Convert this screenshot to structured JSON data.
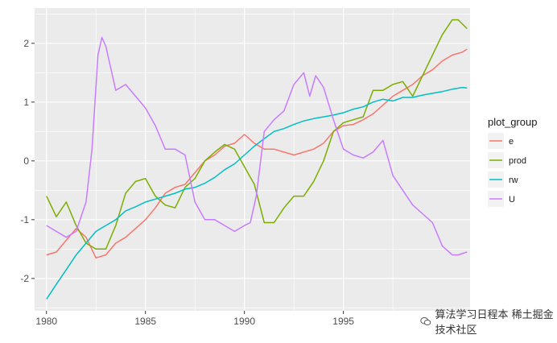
{
  "chart_data": {
    "type": "line",
    "title": "",
    "xlabel": "",
    "ylabel": "",
    "xlim": [
      1979.4,
      2001.4
    ],
    "ylim": [
      -2.55,
      2.6
    ],
    "x_ticks": [
      1980,
      1985,
      1990,
      1995
    ],
    "y_ticks": [
      -2,
      -1,
      0,
      1,
      2
    ],
    "grid": true,
    "panel_background": "#ebebeb",
    "legend": {
      "title": "plot_group",
      "position": "right"
    },
    "series": [
      {
        "name": "e",
        "color": "#F8766D",
        "x": [
          1980,
          1980.5,
          1981,
          1981.5,
          1982,
          1982.5,
          1983,
          1983.5,
          1984,
          1984.5,
          1985,
          1985.5,
          1986,
          1986.5,
          1987,
          1987.5,
          1988,
          1988.5,
          1989,
          1989.5,
          1990,
          1990.5,
          1991,
          1991.5,
          1992,
          1992.5,
          1993,
          1993.5,
          1994,
          1994.5,
          1995,
          1995.5,
          1996,
          1996.5,
          1997,
          1997.5,
          1998,
          1998.5,
          1999,
          1999.5,
          2000,
          2000.5,
          2001,
          2001.25
        ],
        "y": [
          -1.6,
          -1.55,
          -1.35,
          -1.15,
          -1.3,
          -1.65,
          -1.6,
          -1.4,
          -1.3,
          -1.15,
          -1.0,
          -0.8,
          -0.55,
          -0.45,
          -0.4,
          -0.2,
          0.0,
          0.1,
          0.25,
          0.3,
          0.45,
          0.3,
          0.2,
          0.2,
          0.15,
          0.1,
          0.15,
          0.2,
          0.3,
          0.5,
          0.6,
          0.62,
          0.7,
          0.8,
          0.95,
          1.1,
          1.2,
          1.3,
          1.45,
          1.55,
          1.7,
          1.8,
          1.85,
          1.9
        ]
      },
      {
        "name": "prod",
        "color": "#7CAE00",
        "x": [
          1980,
          1980.5,
          1981,
          1981.5,
          1982,
          1982.5,
          1983,
          1983.5,
          1984,
          1984.5,
          1985,
          1985.5,
          1986,
          1986.5,
          1987,
          1987.5,
          1988,
          1988.5,
          1989,
          1989.5,
          1990,
          1990.5,
          1991,
          1991.5,
          1992,
          1992.5,
          1993,
          1993.5,
          1994,
          1994.5,
          1995,
          1995.5,
          1996,
          1996.5,
          1997,
          1997.5,
          1998,
          1998.5,
          1999,
          1999.5,
          2000,
          2000.5,
          2000.8,
          2001.25
        ],
        "y": [
          -0.6,
          -0.95,
          -0.7,
          -1.1,
          -1.4,
          -1.5,
          -1.5,
          -1.1,
          -0.55,
          -0.35,
          -0.3,
          -0.6,
          -0.75,
          -0.8,
          -0.45,
          -0.3,
          0.0,
          0.15,
          0.28,
          0.2,
          -0.1,
          -0.4,
          -1.05,
          -1.05,
          -0.8,
          -0.6,
          -0.6,
          -0.35,
          0.0,
          0.5,
          0.65,
          0.7,
          0.75,
          1.2,
          1.2,
          1.3,
          1.35,
          1.1,
          1.45,
          1.8,
          2.15,
          2.4,
          2.4,
          2.25
        ]
      },
      {
        "name": "rw",
        "color": "#00BFC4",
        "x": [
          1980,
          1980.5,
          1981,
          1981.5,
          1982,
          1982.5,
          1983,
          1983.5,
          1984,
          1984.5,
          1985,
          1985.5,
          1986,
          1986.5,
          1987,
          1987.5,
          1988,
          1988.5,
          1989,
          1989.5,
          1990,
          1990.5,
          1991,
          1991.5,
          1992,
          1992.5,
          1993,
          1993.5,
          1994,
          1994.5,
          1995,
          1995.5,
          1996,
          1996.5,
          1997,
          1997.5,
          1998,
          1998.5,
          1999,
          1999.5,
          2000,
          2000.5,
          2001,
          2001.25
        ],
        "y": [
          -2.35,
          -2.1,
          -1.85,
          -1.6,
          -1.4,
          -1.2,
          -1.1,
          -1.0,
          -0.85,
          -0.78,
          -0.7,
          -0.65,
          -0.6,
          -0.55,
          -0.48,
          -0.45,
          -0.38,
          -0.28,
          -0.15,
          -0.05,
          0.1,
          0.25,
          0.38,
          0.5,
          0.55,
          0.62,
          0.68,
          0.72,
          0.75,
          0.78,
          0.82,
          0.88,
          0.92,
          1.0,
          1.05,
          1.02,
          1.08,
          1.08,
          1.12,
          1.15,
          1.18,
          1.22,
          1.25,
          1.24
        ]
      },
      {
        "name": "U",
        "color": "#C77CFF",
        "x": [
          1980,
          1980.5,
          1981,
          1981.5,
          1982,
          1982.3,
          1982.6,
          1982.8,
          1983,
          1983.5,
          1984,
          1984.5,
          1985,
          1985.5,
          1986,
          1986.5,
          1987,
          1987.5,
          1988,
          1988.5,
          1989,
          1989.5,
          1990,
          1990.3,
          1990.6,
          1991,
          1991.5,
          1992,
          1992.5,
          1993,
          1993.3,
          1993.6,
          1994,
          1994.5,
          1995,
          1995.5,
          1996,
          1996.5,
          1997,
          1997.5,
          1998,
          1998.5,
          1999,
          1999.5,
          2000,
          2000.5,
          2000.8,
          2001.25
        ],
        "y": [
          -1.1,
          -1.2,
          -1.3,
          -1.2,
          -0.7,
          0.2,
          1.8,
          2.1,
          1.95,
          1.2,
          1.3,
          1.1,
          0.9,
          0.6,
          0.2,
          0.2,
          0.1,
          -0.7,
          -1.0,
          -1.0,
          -1.1,
          -1.2,
          -1.1,
          -1.05,
          -0.6,
          0.5,
          0.7,
          0.85,
          1.3,
          1.5,
          1.1,
          1.45,
          1.25,
          0.7,
          0.2,
          0.1,
          0.05,
          0.15,
          0.35,
          -0.25,
          -0.5,
          -0.75,
          -0.9,
          -1.05,
          -1.45,
          -1.6,
          -1.6,
          -1.55
        ]
      }
    ]
  },
  "watermark": {
    "text": "算法学习日程本 稀土掘金技术社区"
  }
}
